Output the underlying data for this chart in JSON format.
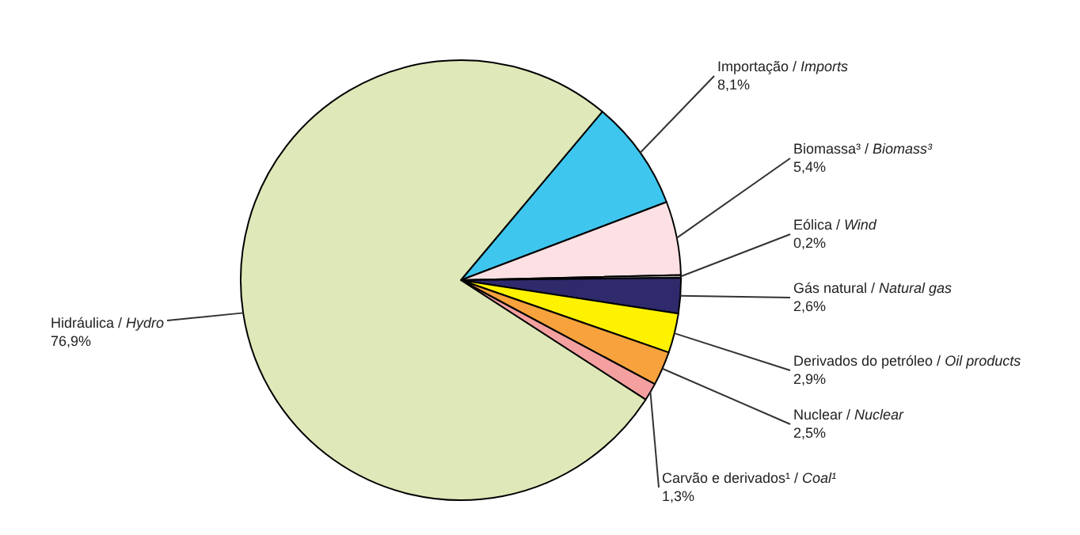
{
  "chart_data": {
    "type": "pie",
    "categories": [
      "Importação / Imports",
      "Biomassa³ / Biomass³",
      "Eólica / Wind",
      "Gás natural / Natural gas",
      "Derivados do petróleo / Oil products",
      "Nuclear / Nuclear",
      "Carvão e derivados¹ / Coal¹",
      "Hidráulica / Hydro"
    ],
    "values": [
      8.1,
      5.4,
      0.2,
      2.6,
      2.9,
      2.5,
      1.3,
      76.9
    ],
    "value_labels": [
      "8,1%",
      "5,4%",
      "0,2%",
      "2,6%",
      "2,9%",
      "2,5%",
      "1,3%",
      "76,9%"
    ],
    "colors": [
      "#3ec6ee",
      "#fce0e4",
      "#b0b0b0",
      "#2f2a6c",
      "#fff200",
      "#f7a23c",
      "#f4a0a0",
      "#dfe8b8"
    ],
    "legend": false
  }
}
